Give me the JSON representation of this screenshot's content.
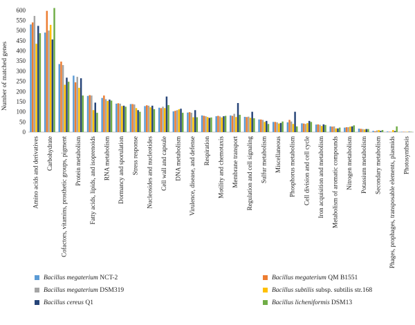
{
  "chart_data": {
    "type": "bar",
    "title": "",
    "xlabel": "",
    "ylabel": "Number of matched genes",
    "ylim": [
      0,
      630
    ],
    "yticks": [
      0,
      50,
      100,
      150,
      200,
      250,
      300,
      350,
      400,
      450,
      500,
      550,
      600
    ],
    "grid": false,
    "legend_position": "bottom",
    "categories": [
      "Amino acids and derivatives",
      "Carbohydrate",
      "Cofactors, vitamins, prosthetic groups, pigment",
      "Protein metabolism",
      "Fatty acids, lipids, and isoprenoids",
      "RNA metabolism",
      "Dormancy and sporulation",
      "Stress response",
      "Nucleosides and nucleotides",
      "Cell wall and capsule",
      "DNA metabolism",
      "Virulence, disease, and defense",
      "Respiration",
      "Motility and chemotaxis",
      "Membrane transport",
      "Regulation and cell signaling",
      "Sulfur metabolism",
      "Miscellaneous",
      "Phosphorus metabolism",
      "Cell division and cell cycle",
      "Iron acquisition and metabolism",
      "Metabolism of aromatic compounds",
      "Nitrogen metabolism",
      "Potassium metabolism",
      "Secondary metabolism",
      "Phages, prophages, transposable elements, plasmids",
      "Photosynthesis"
    ],
    "series": [
      {
        "species": "Bacillus megaterium",
        "strain": "NCT-2",
        "color": "#5b9bd5",
        "values": [
          530,
          490,
          335,
          278,
          178,
          168,
          140,
          138,
          128,
          120,
          102,
          96,
          82,
          78,
          82,
          75,
          62,
          50,
          48,
          43,
          37,
          28,
          22,
          17,
          6,
          3,
          1
        ]
      },
      {
        "species": "Bacillus megaterium",
        "strain": "QM B1551",
        "color": "#ed7d31",
        "values": [
          540,
          597,
          347,
          245,
          182,
          180,
          142,
          138,
          132,
          118,
          105,
          98,
          80,
          80,
          80,
          74,
          62,
          50,
          60,
          42,
          38,
          27,
          24,
          16,
          4,
          2,
          1
        ]
      },
      {
        "species": "Bacillus megaterium",
        "strain": "DSM319",
        "color": "#a5a5a5",
        "values": [
          572,
          500,
          330,
          272,
          180,
          162,
          140,
          136,
          130,
          125,
          108,
          95,
          78,
          77,
          90,
          76,
          60,
          48,
          52,
          40,
          36,
          28,
          24,
          15,
          8,
          2,
          1
        ]
      },
      {
        "species": "Bacillus subtilis subsp. subtilis",
        "strain": "str.168",
        "color": "#ffc000",
        "values": [
          435,
          528,
          233,
          218,
          108,
          153,
          128,
          118,
          122,
          118,
          112,
          73,
          74,
          72,
          74,
          70,
          50,
          42,
          40,
          44,
          30,
          18,
          27,
          13,
          10,
          10,
          1
        ]
      },
      {
        "species": "Bacillus cereus",
        "strain": "Q1",
        "color": "#264478",
        "values": [
          523,
          456,
          268,
          265,
          145,
          160,
          130,
          108,
          130,
          175,
          115,
          108,
          70,
          78,
          143,
          100,
          55,
          45,
          100,
          55,
          38,
          18,
          28,
          15,
          6,
          5,
          1
        ]
      },
      {
        "species": "Bacillus licheniformis",
        "strain": "DSM13",
        "color": "#70ad47",
        "values": [
          487,
          611,
          248,
          180,
          95,
          155,
          125,
          100,
          113,
          133,
          95,
          73,
          72,
          80,
          85,
          68,
          40,
          52,
          28,
          50,
          35,
          22,
          33,
          15,
          10,
          28,
          1
        ]
      }
    ]
  },
  "legend": [
    {
      "species": "Bacillus megaterium",
      "strain": "NCT-2",
      "color": "#5b9bd5"
    },
    {
      "species": "Bacillus megaterium",
      "strain": "QM B1551",
      "color": "#ed7d31"
    },
    {
      "species": "Bacillus megaterium",
      "strain": "DSM319",
      "color": "#a5a5a5"
    },
    {
      "species": "Bacillus subtilis",
      "strain": "subsp. subtilis str.168",
      "color": "#ffc000"
    },
    {
      "species": "Bacillus cereus",
      "strain": "Q1",
      "color": "#264478"
    },
    {
      "species": "Bacillus licheniformis",
      "strain": "DSM13",
      "color": "#70ad47"
    }
  ]
}
